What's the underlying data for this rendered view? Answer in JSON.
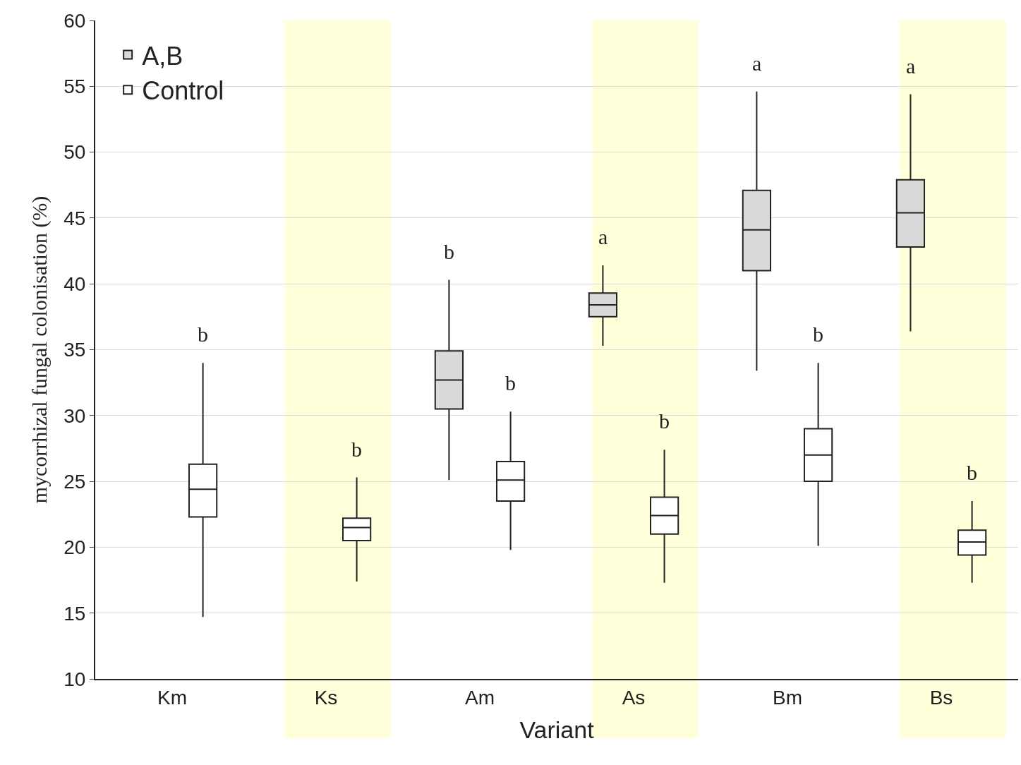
{
  "chart_data": {
    "type": "box",
    "xlabel": "Variant",
    "ylabel": "mycorrhizal fungal colonisation (%)",
    "categories": [
      "Km",
      "Ks",
      "Am",
      "As",
      "Bm",
      "Bs"
    ],
    "ylim": [
      10,
      60
    ],
    "yticks": [
      10,
      15,
      20,
      25,
      30,
      35,
      40,
      45,
      50,
      55,
      60
    ],
    "grid": "y",
    "legend": "top left",
    "series": [
      {
        "name": "A,B",
        "color": "#d9d9d9",
        "boxes": [
          null,
          null,
          {
            "low": 25.1,
            "q1": 30.5,
            "median": 32.7,
            "q3": 34.9,
            "high": 40.3
          },
          {
            "low": 35.3,
            "q1": 37.5,
            "median": 38.4,
            "q3": 39.3,
            "high": 41.4
          },
          {
            "low": 33.4,
            "q1": 41.0,
            "median": 44.1,
            "q3": 47.1,
            "high": 54.6
          },
          {
            "low": 36.4,
            "q1": 42.8,
            "median": 45.4,
            "q3": 47.9,
            "high": 54.4
          }
        ]
      },
      {
        "name": "Control",
        "color": "#ffffff",
        "boxes": [
          {
            "low": 14.7,
            "q1": 22.3,
            "median": 24.4,
            "q3": 26.3,
            "high": 34.0
          },
          {
            "low": 17.4,
            "q1": 20.5,
            "median": 21.5,
            "q3": 22.2,
            "high": 25.3
          },
          {
            "low": 19.8,
            "q1": 23.5,
            "median": 25.1,
            "q3": 26.5,
            "high": 30.3
          },
          {
            "low": 17.3,
            "q1": 21.0,
            "median": 22.4,
            "q3": 23.8,
            "high": 27.4
          },
          {
            "low": 20.1,
            "q1": 25.0,
            "median": 27.0,
            "q3": 29.0,
            "high": 34.0
          },
          {
            "low": 17.3,
            "q1": 19.4,
            "median": 20.4,
            "q3": 21.3,
            "high": 23.5
          }
        ]
      }
    ],
    "bands": [
      {
        "axis": "x",
        "from": "Ks",
        "to": "Ks",
        "color": "#ffffd9"
      },
      {
        "axis": "x",
        "from": "As",
        "to": "As",
        "color": "#ffffd9"
      },
      {
        "axis": "x",
        "from": "Bs",
        "to": "Bs",
        "color": "#ffffd9"
      }
    ],
    "annotations": [
      "b",
      "b",
      "b",
      "b",
      "a",
      "b",
      "a",
      "b",
      "a",
      "b"
    ]
  }
}
